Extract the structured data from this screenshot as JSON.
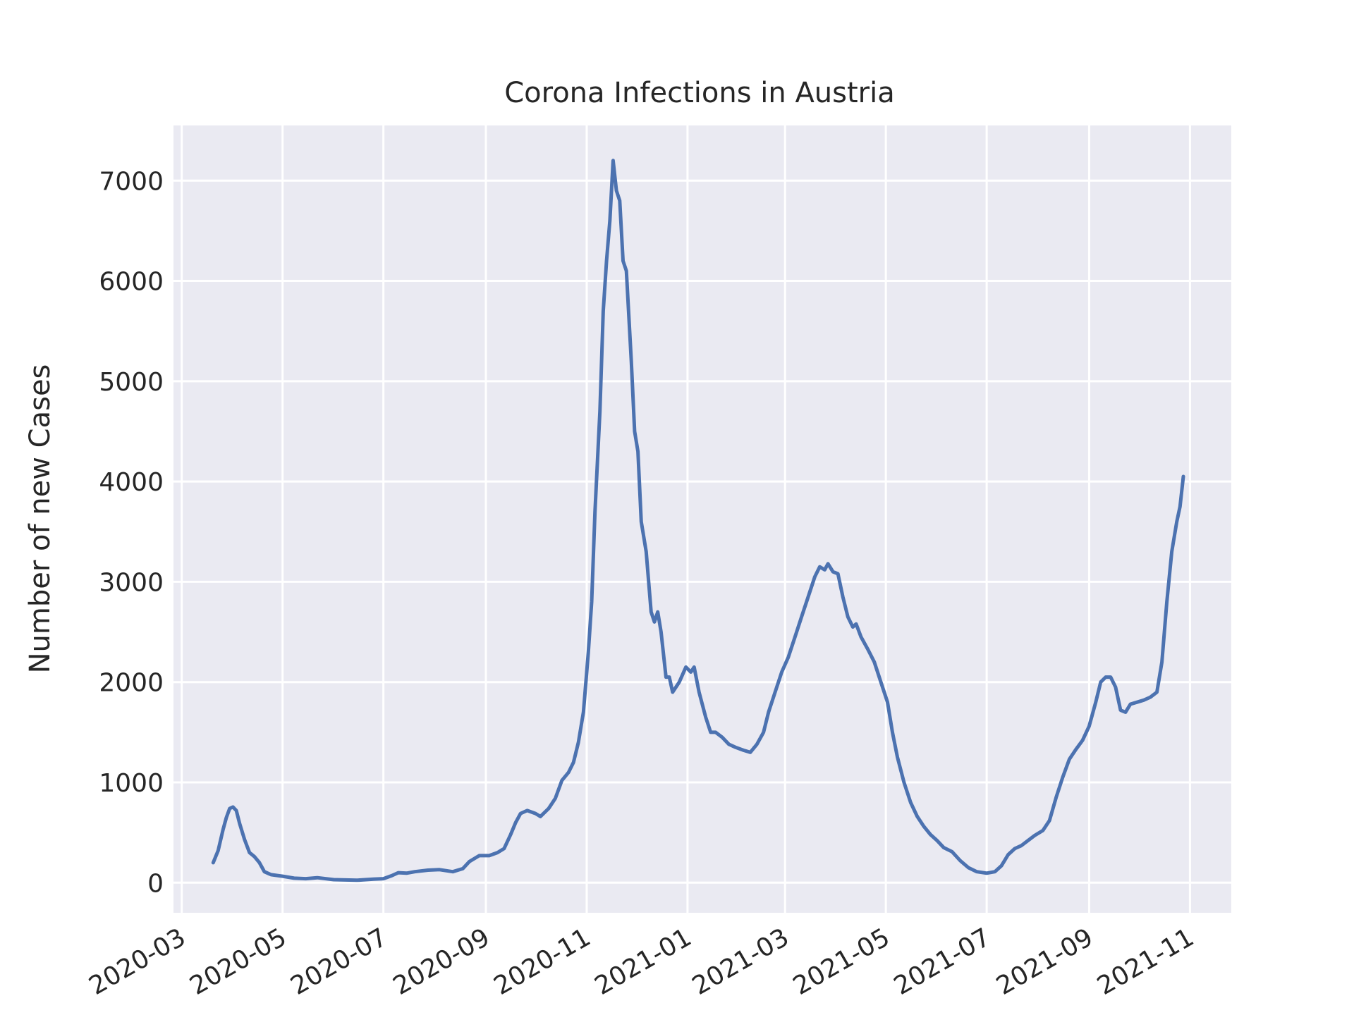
{
  "chart_data": {
    "type": "line",
    "title": "Corona Infections in Austria",
    "xlabel": "",
    "ylabel": "Number of new Cases",
    "grid": true,
    "xlim": [
      "2020-02-25",
      "2021-11-26"
    ],
    "ylim": [
      -300,
      7550
    ],
    "x_ticks": [
      "2020-03",
      "2020-05",
      "2020-07",
      "2020-09",
      "2020-11",
      "2021-01",
      "2021-03",
      "2021-05",
      "2021-07",
      "2021-09",
      "2021-11"
    ],
    "y_ticks": [
      0,
      1000,
      2000,
      3000,
      4000,
      5000,
      6000,
      7000
    ],
    "colors": {
      "line": "#4c72b0",
      "plot_background": "#eaeaf2",
      "grid": "#ffffff"
    },
    "series": [
      {
        "points": [
          [
            "2020-03-20",
            200
          ],
          [
            "2020-03-23",
            320
          ],
          [
            "2020-03-26",
            530
          ],
          [
            "2020-03-28",
            650
          ],
          [
            "2020-03-30",
            740
          ],
          [
            "2020-04-01",
            755
          ],
          [
            "2020-04-03",
            720
          ],
          [
            "2020-04-05",
            590
          ],
          [
            "2020-04-08",
            430
          ],
          [
            "2020-04-11",
            300
          ],
          [
            "2020-04-14",
            260
          ],
          [
            "2020-04-17",
            200
          ],
          [
            "2020-04-20",
            110
          ],
          [
            "2020-04-24",
            80
          ],
          [
            "2020-05-01",
            65
          ],
          [
            "2020-05-08",
            45
          ],
          [
            "2020-05-15",
            40
          ],
          [
            "2020-05-22",
            50
          ],
          [
            "2020-06-01",
            30
          ],
          [
            "2020-06-15",
            25
          ],
          [
            "2020-06-25",
            35
          ],
          [
            "2020-07-01",
            40
          ],
          [
            "2020-07-06",
            70
          ],
          [
            "2020-07-10",
            100
          ],
          [
            "2020-07-15",
            95
          ],
          [
            "2020-07-20",
            110
          ],
          [
            "2020-07-28",
            125
          ],
          [
            "2020-08-04",
            130
          ],
          [
            "2020-08-12",
            110
          ],
          [
            "2020-08-18",
            140
          ],
          [
            "2020-08-22",
            210
          ],
          [
            "2020-08-28",
            270
          ],
          [
            "2020-09-03",
            270
          ],
          [
            "2020-09-08",
            300
          ],
          [
            "2020-09-12",
            340
          ],
          [
            "2020-09-16",
            480
          ],
          [
            "2020-09-19",
            600
          ],
          [
            "2020-09-22",
            690
          ],
          [
            "2020-09-26",
            720
          ],
          [
            "2020-10-01",
            690
          ],
          [
            "2020-10-04",
            660
          ],
          [
            "2020-10-09",
            740
          ],
          [
            "2020-10-13",
            840
          ],
          [
            "2020-10-17",
            1020
          ],
          [
            "2020-10-21",
            1100
          ],
          [
            "2020-10-24",
            1200
          ],
          [
            "2020-10-27",
            1400
          ],
          [
            "2020-10-30",
            1700
          ],
          [
            "2020-11-02",
            2300
          ],
          [
            "2020-11-04",
            2800
          ],
          [
            "2020-11-06",
            3700
          ],
          [
            "2020-11-09",
            4700
          ],
          [
            "2020-11-11",
            5700
          ],
          [
            "2020-11-13",
            6200
          ],
          [
            "2020-11-15",
            6600
          ],
          [
            "2020-11-17",
            7200
          ],
          [
            "2020-11-19",
            6900
          ],
          [
            "2020-11-21",
            6800
          ],
          [
            "2020-11-23",
            6200
          ],
          [
            "2020-11-25",
            6100
          ],
          [
            "2020-11-28",
            5200
          ],
          [
            "2020-11-30",
            4500
          ],
          [
            "2020-12-02",
            4300
          ],
          [
            "2020-12-04",
            3600
          ],
          [
            "2020-12-07",
            3300
          ],
          [
            "2020-12-10",
            2700
          ],
          [
            "2020-12-12",
            2600
          ],
          [
            "2020-12-14",
            2700
          ],
          [
            "2020-12-16",
            2500
          ],
          [
            "2020-12-19",
            2050
          ],
          [
            "2020-12-21",
            2050
          ],
          [
            "2020-12-23",
            1900
          ],
          [
            "2020-12-27",
            2000
          ],
          [
            "2020-12-31",
            2150
          ],
          [
            "2021-01-03",
            2100
          ],
          [
            "2021-01-05",
            2150
          ],
          [
            "2021-01-08",
            1900
          ],
          [
            "2021-01-12",
            1650
          ],
          [
            "2021-01-15",
            1500
          ],
          [
            "2021-01-18",
            1500
          ],
          [
            "2021-01-22",
            1450
          ],
          [
            "2021-01-26",
            1380
          ],
          [
            "2021-01-30",
            1350
          ],
          [
            "2021-02-04",
            1320
          ],
          [
            "2021-02-08",
            1300
          ],
          [
            "2021-02-12",
            1380
          ],
          [
            "2021-02-16",
            1500
          ],
          [
            "2021-02-19",
            1700
          ],
          [
            "2021-02-23",
            1900
          ],
          [
            "2021-02-27",
            2100
          ],
          [
            "2021-03-03",
            2250
          ],
          [
            "2021-03-07",
            2450
          ],
          [
            "2021-03-11",
            2650
          ],
          [
            "2021-03-15",
            2850
          ],
          [
            "2021-03-19",
            3050
          ],
          [
            "2021-03-22",
            3150
          ],
          [
            "2021-03-25",
            3120
          ],
          [
            "2021-03-27",
            3180
          ],
          [
            "2021-03-30",
            3100
          ],
          [
            "2021-04-02",
            3080
          ],
          [
            "2021-04-05",
            2850
          ],
          [
            "2021-04-08",
            2650
          ],
          [
            "2021-04-11",
            2550
          ],
          [
            "2021-04-13",
            2580
          ],
          [
            "2021-04-16",
            2450
          ],
          [
            "2021-04-20",
            2330
          ],
          [
            "2021-04-24",
            2200
          ],
          [
            "2021-04-28",
            2000
          ],
          [
            "2021-05-02",
            1800
          ],
          [
            "2021-05-05",
            1500
          ],
          [
            "2021-05-08",
            1250
          ],
          [
            "2021-05-12",
            1000
          ],
          [
            "2021-05-16",
            800
          ],
          [
            "2021-05-20",
            660
          ],
          [
            "2021-05-24",
            560
          ],
          [
            "2021-05-28",
            480
          ],
          [
            "2021-06-01",
            420
          ],
          [
            "2021-06-05",
            350
          ],
          [
            "2021-06-10",
            310
          ],
          [
            "2021-06-15",
            220
          ],
          [
            "2021-06-20",
            150
          ],
          [
            "2021-06-25",
            110
          ],
          [
            "2021-07-01",
            95
          ],
          [
            "2021-07-06",
            110
          ],
          [
            "2021-07-10",
            170
          ],
          [
            "2021-07-14",
            280
          ],
          [
            "2021-07-18",
            340
          ],
          [
            "2021-07-22",
            370
          ],
          [
            "2021-07-26",
            420
          ],
          [
            "2021-07-30",
            470
          ],
          [
            "2021-08-04",
            520
          ],
          [
            "2021-08-08",
            620
          ],
          [
            "2021-08-12",
            850
          ],
          [
            "2021-08-16",
            1050
          ],
          [
            "2021-08-20",
            1230
          ],
          [
            "2021-08-24",
            1330
          ],
          [
            "2021-08-28",
            1420
          ],
          [
            "2021-09-01",
            1560
          ],
          [
            "2021-09-05",
            1800
          ],
          [
            "2021-09-08",
            2000
          ],
          [
            "2021-09-11",
            2050
          ],
          [
            "2021-09-14",
            2050
          ],
          [
            "2021-09-17",
            1950
          ],
          [
            "2021-09-20",
            1720
          ],
          [
            "2021-09-23",
            1700
          ],
          [
            "2021-09-26",
            1780
          ],
          [
            "2021-09-30",
            1800
          ],
          [
            "2021-10-04",
            1820
          ],
          [
            "2021-10-08",
            1850
          ],
          [
            "2021-10-12",
            1900
          ],
          [
            "2021-10-15",
            2200
          ],
          [
            "2021-10-18",
            2800
          ],
          [
            "2021-10-21",
            3300
          ],
          [
            "2021-10-24",
            3600
          ],
          [
            "2021-10-26",
            3750
          ],
          [
            "2021-10-28",
            4050
          ]
        ]
      }
    ]
  }
}
